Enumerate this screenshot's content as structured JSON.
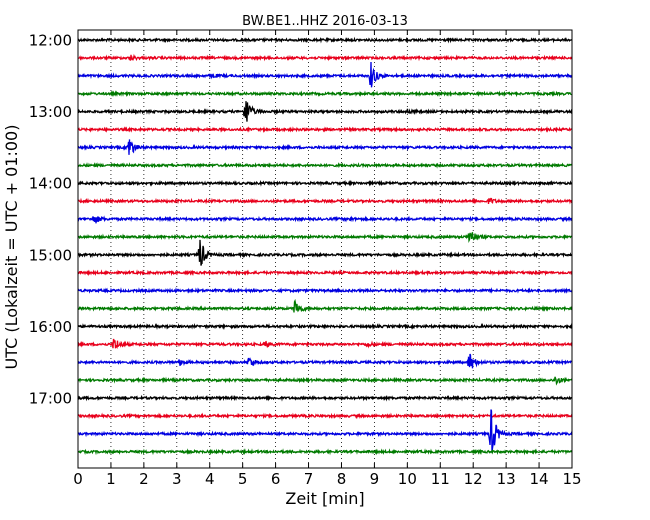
{
  "chart_data": {
    "type": "line",
    "title": "BW.BE1..HHZ 2016-03-13",
    "xlabel": "Zeit  [min]",
    "ylabel": "UTC (Lokalzeit = UTC + 01:00)",
    "xlim": [
      0,
      15
    ],
    "x_ticks": [
      "0",
      "1",
      "2",
      "3",
      "4",
      "5",
      "6",
      "7",
      "8",
      "9",
      "10",
      "11",
      "12",
      "13",
      "14",
      "15"
    ],
    "y_tick_labels": [
      "12:00",
      "13:00",
      "14:00",
      "15:00",
      "16:00",
      "17:00"
    ],
    "grid": true,
    "trace_colors": [
      "#000000",
      "#e8001c",
      "#0000e0",
      "#007a00"
    ],
    "series": [
      {
        "start": "12:00",
        "color": "#000000",
        "events": []
      },
      {
        "start": "12:15",
        "color": "#e8001c",
        "events": [
          {
            "x": 1.6,
            "amp": 0.15
          }
        ]
      },
      {
        "start": "12:30",
        "color": "#0000e0",
        "events": [
          {
            "x": 8.9,
            "amp": 0.85
          },
          {
            "x": 4.1,
            "amp": 0.1
          }
        ]
      },
      {
        "start": "12:45",
        "color": "#007a00",
        "events": []
      },
      {
        "start": "13:00",
        "color": "#000000",
        "events": [
          {
            "x": 5.1,
            "amp": 0.95
          },
          {
            "x": 10.0,
            "amp": 0.12
          }
        ]
      },
      {
        "start": "13:15",
        "color": "#e8001c",
        "events": []
      },
      {
        "start": "13:30",
        "color": "#0000e0",
        "events": [
          {
            "x": 1.55,
            "amp": 0.7
          }
        ]
      },
      {
        "start": "13:45",
        "color": "#007a00",
        "events": []
      },
      {
        "start": "14:00",
        "color": "#000000",
        "events": []
      },
      {
        "start": "14:15",
        "color": "#e8001c",
        "events": [
          {
            "x": 12.5,
            "amp": 0.18
          }
        ]
      },
      {
        "start": "14:30",
        "color": "#0000e0",
        "events": [
          {
            "x": 0.5,
            "amp": 0.3
          },
          {
            "x": 8.2,
            "amp": 0.08
          }
        ]
      },
      {
        "start": "14:45",
        "color": "#007a00",
        "events": [
          {
            "x": 11.9,
            "amp": 0.55
          }
        ]
      },
      {
        "start": "15:00",
        "color": "#000000",
        "events": [
          {
            "x": 3.7,
            "amp": 1.05
          }
        ]
      },
      {
        "start": "15:15",
        "color": "#e8001c",
        "events": []
      },
      {
        "start": "15:30",
        "color": "#0000e0",
        "events": []
      },
      {
        "start": "15:45",
        "color": "#007a00",
        "events": [
          {
            "x": 6.6,
            "amp": 0.55
          }
        ]
      },
      {
        "start": "16:00",
        "color": "#000000",
        "events": []
      },
      {
        "start": "16:15",
        "color": "#e8001c",
        "events": [
          {
            "x": 1.1,
            "amp": 0.45
          },
          {
            "x": 5.7,
            "amp": 0.15
          },
          {
            "x": 8.8,
            "amp": 0.12
          }
        ]
      },
      {
        "start": "16:30",
        "color": "#0000e0",
        "events": [
          {
            "x": 3.1,
            "amp": 0.18
          },
          {
            "x": 5.2,
            "amp": 0.35
          },
          {
            "x": 11.9,
            "amp": 0.6
          }
        ]
      },
      {
        "start": "16:45",
        "color": "#007a00",
        "events": [
          {
            "x": 14.5,
            "amp": 0.3
          }
        ]
      },
      {
        "start": "17:00",
        "color": "#000000",
        "events": []
      },
      {
        "start": "17:15",
        "color": "#e8001c",
        "events": []
      },
      {
        "start": "17:30",
        "color": "#0000e0",
        "events": [
          {
            "x": 12.55,
            "amp": 1.6
          }
        ]
      },
      {
        "start": "17:45",
        "color": "#007a00",
        "events": []
      }
    ]
  }
}
